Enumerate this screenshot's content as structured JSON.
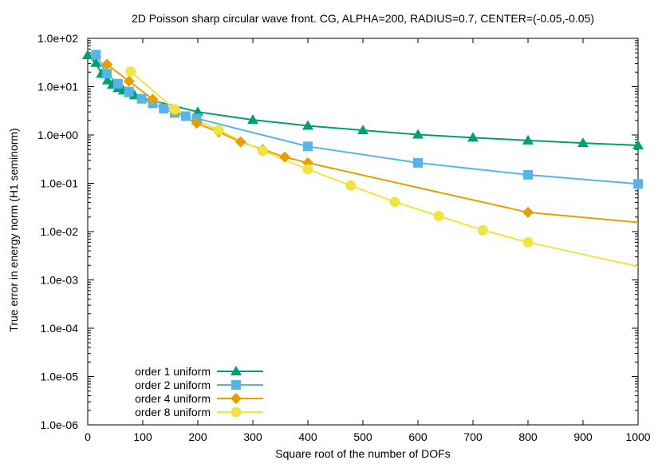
{
  "chart_data": {
    "type": "line",
    "title": "2D Poisson sharp circular wave front. CG, ALPHA=200, RADIUS=0.7, CENTER=(-0.05,-0.05)",
    "xlabel": "Square root of the number of DOFs",
    "ylabel": "True error in energy norm (H1 seminorm)",
    "xlim": [
      0,
      1000
    ],
    "ylim": [
      1e-06,
      100
    ],
    "yscale": "log",
    "grid": false,
    "legend_position": "bottom-left",
    "x_ticks": [
      "0",
      "100",
      "200",
      "300",
      "400",
      "500",
      "600",
      "700",
      "800",
      "900",
      "1000"
    ],
    "y_ticks": [
      "1.0e-06",
      "1.0e-05",
      "1.0e-04",
      "1.0e-03",
      "1.0e-02",
      "1.0e-01",
      "1.0e+00",
      "1.0e+01",
      "1.0e+02"
    ],
    "series": [
      {
        "name": "order 1 uniform",
        "color": "#009e73",
        "marker": "triangle",
        "x": [
          0,
          15,
          25,
          36,
          45,
          55,
          65,
          75,
          85,
          100,
          200,
          300,
          400,
          500,
          600,
          700,
          800,
          900,
          1000
        ],
        "y": [
          45,
          31,
          18.5,
          13.5,
          11,
          9.3,
          8.3,
          7.4,
          6.6,
          5.8,
          3.0,
          2.05,
          1.55,
          1.25,
          1.02,
          0.88,
          0.77,
          0.68,
          0.61
        ],
        "markers_at": [
          0,
          15,
          25,
          36,
          45,
          55,
          65,
          75,
          85,
          200,
          300,
          400,
          500,
          600,
          700,
          800,
          900,
          1000
        ]
      },
      {
        "name": "order 2 uniform",
        "color": "#56b4e9",
        "marker": "square",
        "x": [
          15,
          35,
          55,
          75,
          98,
          118,
          138,
          158,
          178,
          198,
          400,
          600,
          800,
          1000
        ],
        "y": [
          46,
          18.5,
          11.5,
          7.9,
          5.6,
          4.5,
          3.5,
          2.85,
          2.45,
          2.2,
          0.58,
          0.265,
          0.15,
          0.097
        ],
        "markers_at": [
          15,
          35,
          55,
          75,
          98,
          118,
          138,
          158,
          178,
          198,
          400,
          600,
          800,
          1000
        ]
      },
      {
        "name": "order 4 uniform",
        "color": "#e69f00",
        "marker": "diamond",
        "x": [
          35,
          75,
          118,
          158,
          198,
          238,
          278,
          318,
          358,
          400,
          800,
          1000
        ],
        "y": [
          29,
          13,
          5.5,
          3.1,
          1.75,
          1.15,
          0.72,
          0.5,
          0.35,
          0.265,
          0.025,
          0.0155
        ],
        "markers_at": [
          35,
          75,
          118,
          158,
          198,
          238,
          278,
          318,
          358,
          400,
          800
        ]
      },
      {
        "name": "order 8 uniform",
        "color": "#f0e442",
        "marker": "circle",
        "x": [
          78,
          158,
          238,
          318,
          400,
          478,
          558,
          638,
          718,
          800,
          1000
        ],
        "y": [
          20.5,
          3.4,
          1.25,
          0.47,
          0.195,
          0.09,
          0.041,
          0.021,
          0.0107,
          0.006,
          0.0019
        ],
        "markers_at": [
          78,
          158,
          238,
          318,
          400,
          478,
          558,
          638,
          718,
          800
        ]
      }
    ]
  }
}
